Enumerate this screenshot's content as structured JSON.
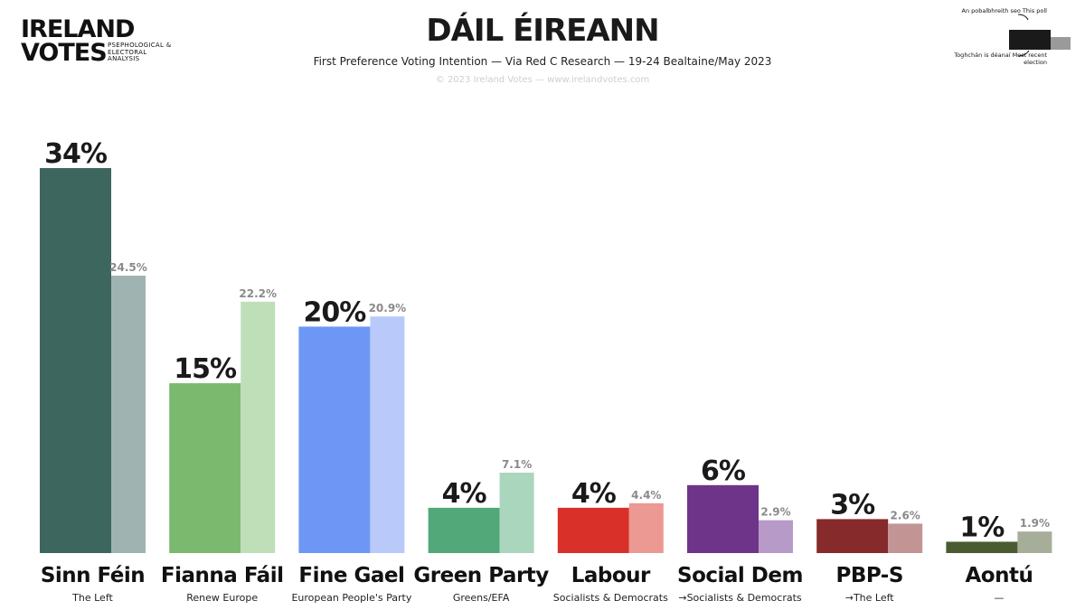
{
  "logo": {
    "line1": "IRELAND",
    "line2": "VOTES",
    "tagline": "PSEPHOLOGICAL & ELECTORAL ANALYSIS"
  },
  "header": {
    "title": "DÁIL ÉIREANN",
    "subtitle": "First Preference Voting Intention — Via Red C Research — 19-24 Bealtaine/May 2023",
    "copyright": "© 2023 Ireland Votes — www.irelandvotes.com"
  },
  "legend": {
    "this_poll": "An pobalbhreith seo This poll",
    "last_election": "Toghchán is déanaí Most recent election"
  },
  "chart_data": {
    "type": "bar",
    "title": "DÁIL ÉIREANN",
    "subtitle": "First Preference Voting Intention — Via Red C Research — 19-24 Bealtaine/May 2023",
    "ylim": [
      0,
      34
    ],
    "categories": [
      "Sinn Féin",
      "Fianna Fáil",
      "Fine Gael",
      "Green Party",
      "Labour",
      "Social Dem",
      "PBP-S",
      "Aontú"
    ],
    "groups": [
      "The Left",
      "Renew Europe",
      "European People's Party",
      "Greens/EFA",
      "Socialists & Democrats",
      "→Socialists & Democrats",
      "→The Left",
      "—"
    ],
    "series": [
      {
        "name": "This poll",
        "values": [
          34,
          15,
          20,
          4,
          4,
          6,
          3,
          1
        ],
        "labels": [
          "34%",
          "15%",
          "20%",
          "4%",
          "4%",
          "6%",
          "3%",
          "1%"
        ],
        "colors": [
          "#3d665e",
          "#7ab96e",
          "#6e97f5",
          "#52a878",
          "#d9302a",
          "#6e3489",
          "#862a2b",
          "#4b5b30"
        ]
      },
      {
        "name": "Most recent election",
        "values": [
          24.5,
          22.2,
          20.9,
          7.1,
          4.4,
          2.9,
          2.6,
          1.9
        ],
        "labels": [
          "24.5%",
          "22.2%",
          "20.9%",
          "7.1%",
          "4.4%",
          "2.9%",
          "2.6%",
          "1.9%"
        ],
        "colors": [
          "#9fb4b0",
          "#bfdfb9",
          "#b9cafa",
          "#a9d6bd",
          "#eb9992",
          "#b89ac8",
          "#c29594",
          "#a6ad99"
        ]
      }
    ],
    "grid": false,
    "legend": "top-right"
  }
}
